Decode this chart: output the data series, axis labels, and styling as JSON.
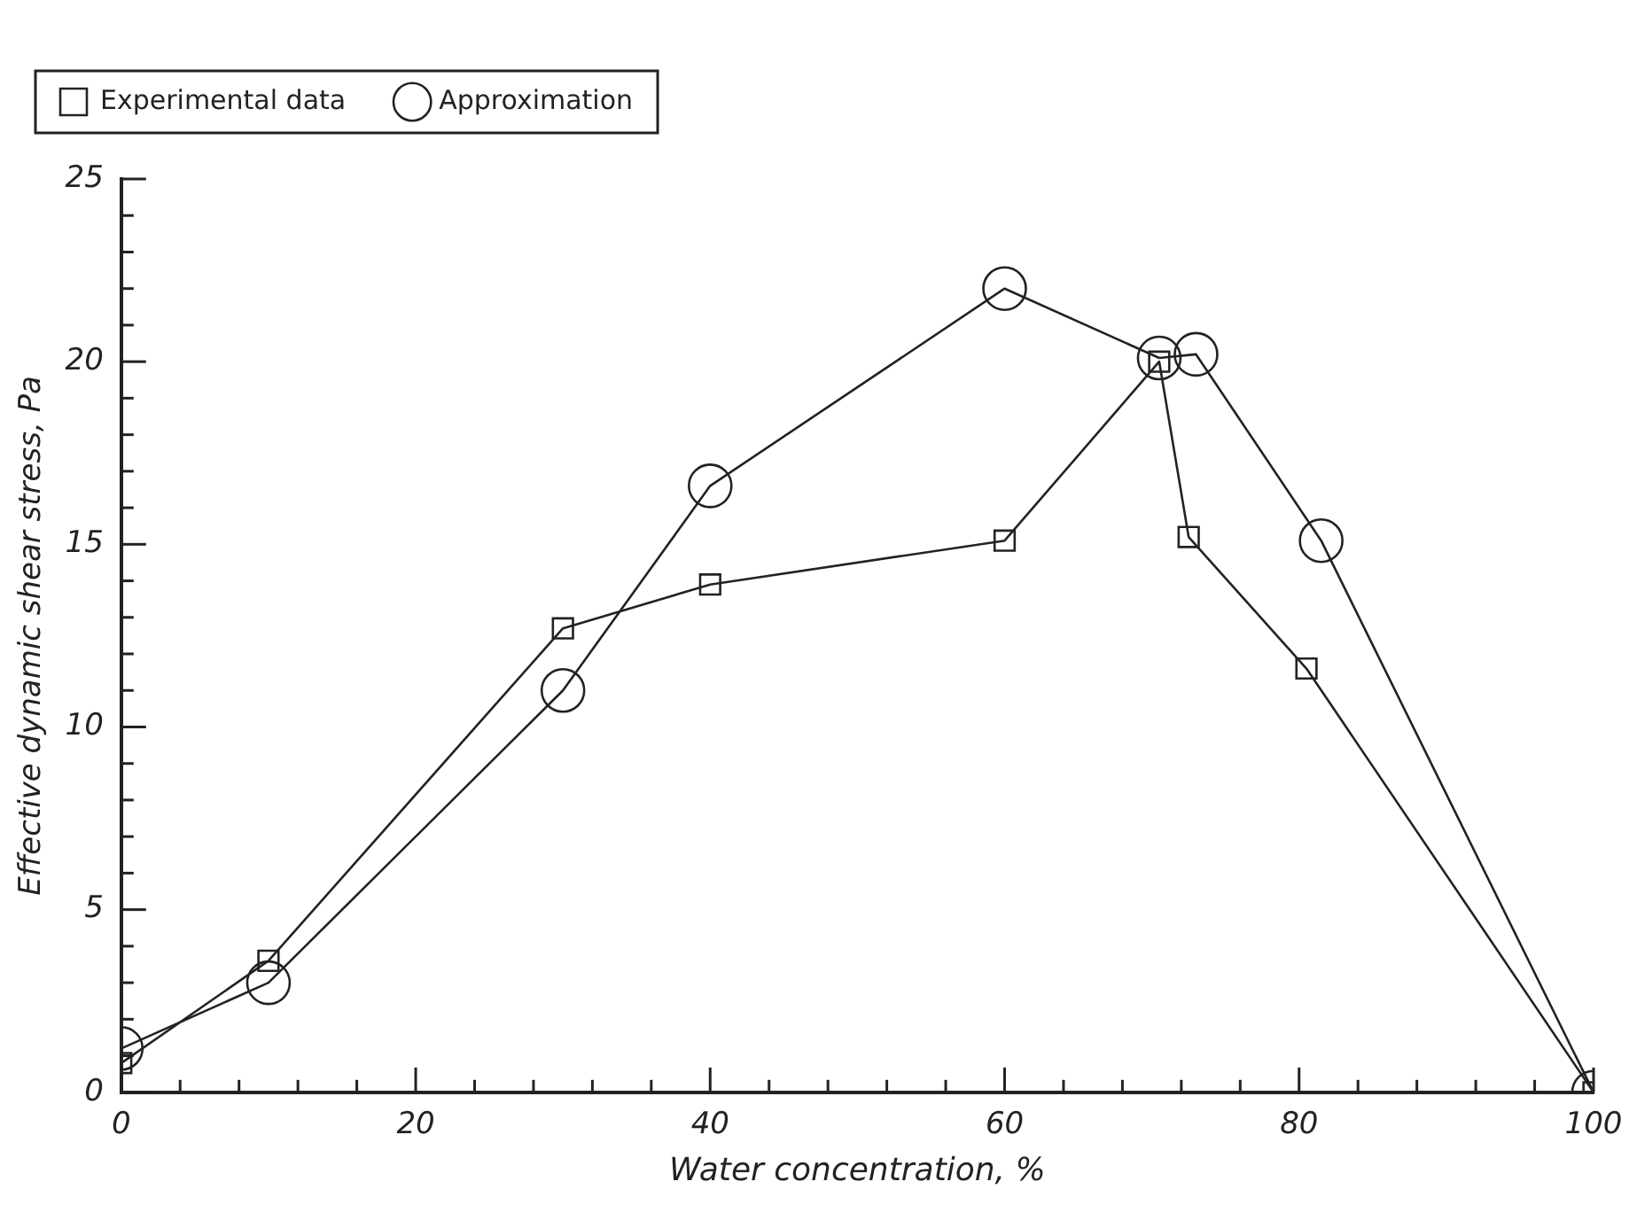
{
  "chart_data": {
    "type": "line",
    "xlabel": "Water concentration, %",
    "ylabel": "Effective dynamic shear stress, Pa",
    "xlim": [
      0,
      100
    ],
    "ylim": [
      0,
      25
    ],
    "xticks": [
      0,
      {
        "value": 4,
        "label": null
      },
      {
        "value": 8,
        "label": null
      },
      {
        "value": 12,
        "label": null
      },
      {
        "value": 16,
        "label": null
      },
      20,
      {
        "value": 24,
        "label": null
      },
      {
        "value": 28,
        "label": null
      },
      {
        "value": 32,
        "label": null
      },
      {
        "value": 36,
        "label": null
      },
      40,
      {
        "value": 44,
        "label": null
      },
      {
        "value": 48,
        "label": null
      },
      {
        "value": 52,
        "label": null
      },
      {
        "value": 56,
        "label": null
      },
      60,
      {
        "value": 64,
        "label": null
      },
      {
        "value": 68,
        "label": null
      },
      {
        "value": 72,
        "label": null
      },
      {
        "value": 76,
        "label": null
      },
      80,
      {
        "value": 84,
        "label": null
      },
      {
        "value": 88,
        "label": null
      },
      {
        "value": 92,
        "label": null
      },
      {
        "value": 96,
        "label": null
      },
      100
    ],
    "yticks": [
      0,
      {
        "value": 1,
        "label": null
      },
      {
        "value": 2,
        "label": null
      },
      {
        "value": 3,
        "label": null
      },
      {
        "value": 4,
        "label": null
      },
      5,
      {
        "value": 6,
        "label": null
      },
      {
        "value": 7,
        "label": null
      },
      {
        "value": 8,
        "label": null
      },
      {
        "value": 9,
        "label": null
      },
      10,
      {
        "value": 11,
        "label": null
      },
      {
        "value": 12,
        "label": null
      },
      {
        "value": 13,
        "label": null
      },
      {
        "value": 14,
        "label": null
      },
      15,
      {
        "value": 16,
        "label": null
      },
      {
        "value": 17,
        "label": null
      },
      {
        "value": 18,
        "label": null
      },
      {
        "value": 19,
        "label": null
      },
      20,
      {
        "value": 21,
        "label": null
      },
      {
        "value": 22,
        "label": null
      },
      {
        "value": 23,
        "label": null
      },
      {
        "value": 24,
        "label": null
      },
      25
    ],
    "legend": "top left",
    "grid": false,
    "line_style": "solid",
    "series": [
      {
        "name": "Experimental data",
        "color": "#222222",
        "marker": "square",
        "x": [
          0,
          10,
          30,
          40,
          60,
          70.5,
          72.5,
          80.5,
          100
        ],
        "values": [
          0.8,
          3.6,
          12.7,
          13.9,
          15.1,
          20.0,
          15.2,
          11.6,
          0
        ]
      },
      {
        "name": "Approximation",
        "color": "#222222",
        "marker": "circle",
        "x": [
          0,
          10,
          30,
          40,
          60,
          70.5,
          73,
          81.5,
          100
        ],
        "values": [
          1.2,
          3.0,
          11.0,
          16.6,
          22.0,
          20.1,
          20.2,
          15.1,
          0
        ]
      }
    ]
  }
}
